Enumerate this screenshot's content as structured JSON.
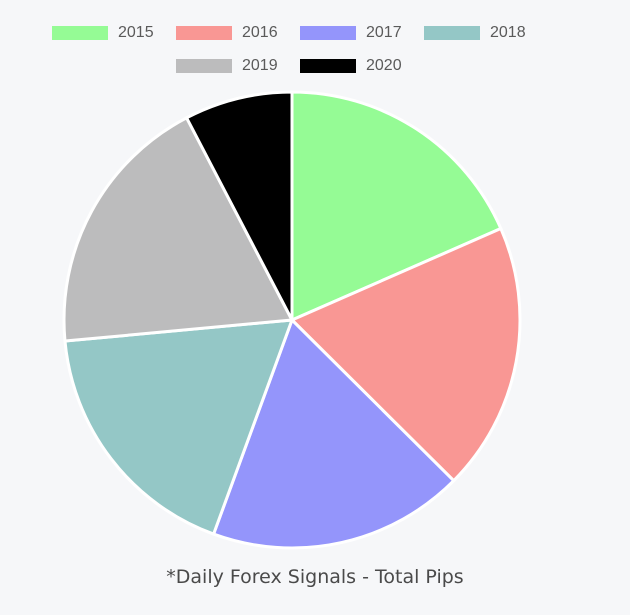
{
  "chart_data": {
    "type": "pie",
    "categories": [
      "2015",
      "2016",
      "2017",
      "2018",
      "2019",
      "2020"
    ],
    "values": [
      18.8,
      19.4,
      18.5,
      18.3,
      19.2,
      7.8
    ],
    "colors": [
      "#95fb95",
      "#f99794",
      "#9495fb",
      "#94c7c6",
      "#bcbcbd",
      "#000000"
    ],
    "legend_position": "top",
    "title": "",
    "caption": "*Daily Forex Signals - Total Pips"
  }
}
